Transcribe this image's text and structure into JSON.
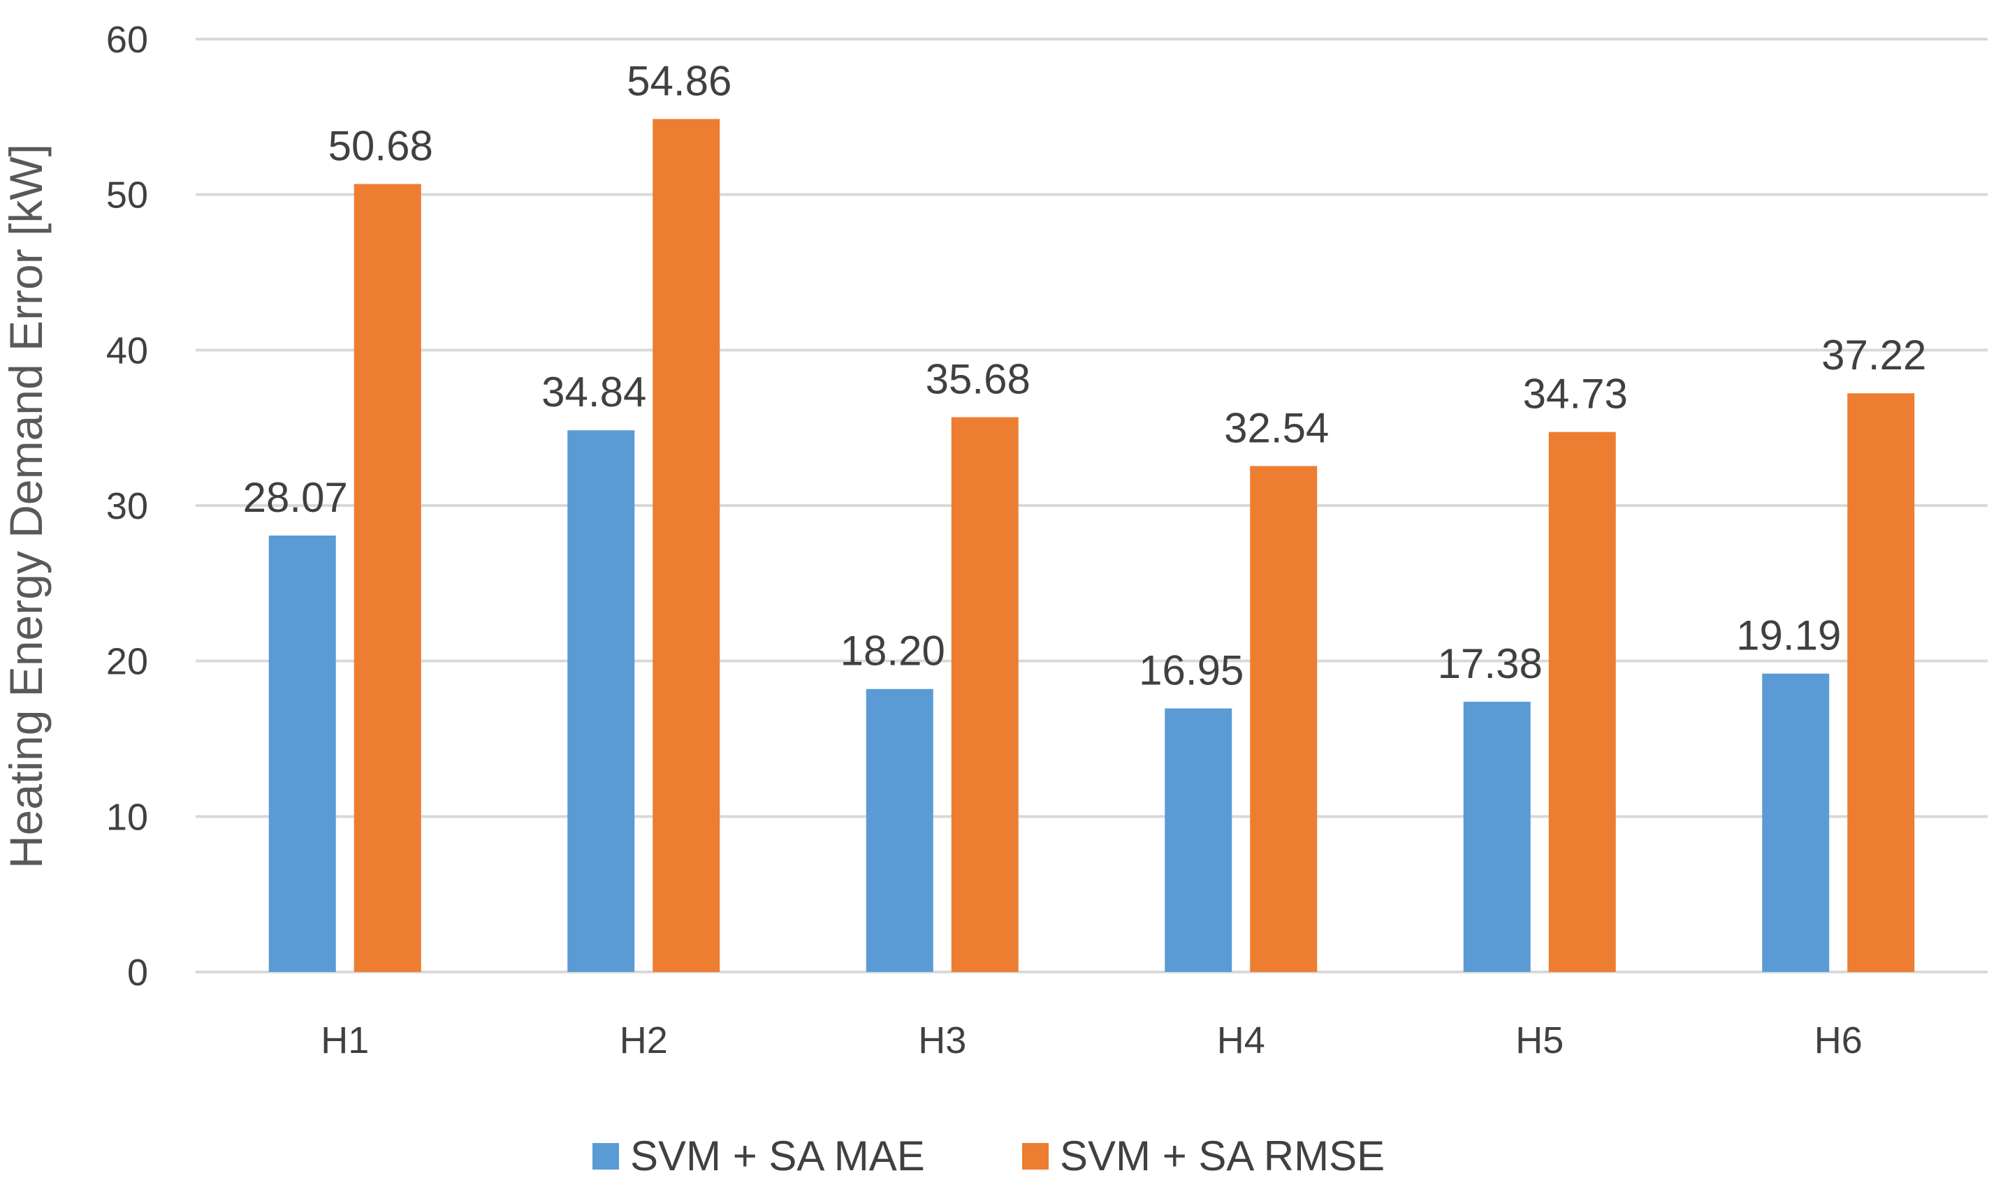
{
  "chart_data": {
    "type": "bar",
    "title": "",
    "xlabel": "",
    "ylabel": "Heating Energy Demand Error [kW]",
    "ylim": [
      0,
      60
    ],
    "yticks": [
      0,
      10,
      20,
      30,
      40,
      50,
      60
    ],
    "grid": true,
    "legend_position": "bottom",
    "categories": [
      "H1",
      "H2",
      "H3",
      "H4",
      "H5",
      "H6"
    ],
    "series": [
      {
        "name": "SVM + SA MAE",
        "color": "#5B9BD5",
        "values": [
          28.07,
          34.84,
          18.2,
          16.95,
          17.38,
          19.19
        ],
        "labels": [
          "28.07",
          "34.84",
          "18.20",
          "16.95",
          "17.38",
          "19.19"
        ]
      },
      {
        "name": "SVM + SA RMSE",
        "color": "#ED7D31",
        "values": [
          50.68,
          54.86,
          35.68,
          32.54,
          34.73,
          37.22
        ],
        "labels": [
          "50.68",
          "54.86",
          "35.68",
          "32.54",
          "34.73",
          "37.22"
        ]
      }
    ]
  }
}
